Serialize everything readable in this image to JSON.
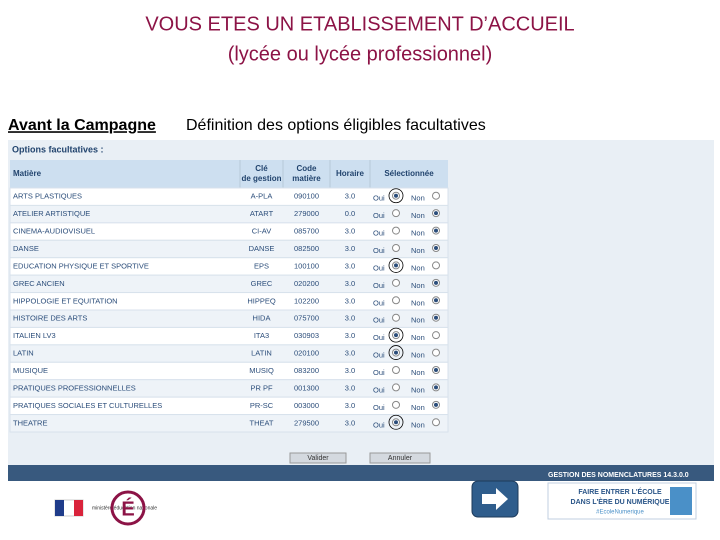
{
  "header": {
    "title": "VOUS ETES UN ETABLISSEMENT D’ACCUEIL",
    "subtitle": "(lycée ou lycée professionnel)"
  },
  "section": {
    "label": "Avant la Campagne",
    "description": "Définition des options éligibles facultatives"
  },
  "table": {
    "caption": "Options facultatives :",
    "columns": [
      "Matière",
      "Clé de gestion",
      "Code matière",
      "Horaire",
      "Sélectionnée"
    ],
    "choices": [
      "Oui",
      "Non"
    ],
    "rows": [
      {
        "matiere": "ARTS PLASTIQUES",
        "cle": "A-PLA",
        "code": "090100",
        "horaire": "3.0",
        "selection": "Oui"
      },
      {
        "matiere": "ATELIER ARTISTIQUE",
        "cle": "ATART",
        "code": "279000",
        "horaire": "0.0",
        "selection": "Non"
      },
      {
        "matiere": "CINEMA-AUDIOVISUEL",
        "cle": "CI-AV",
        "code": "085700",
        "horaire": "3.0",
        "selection": "Non"
      },
      {
        "matiere": "DANSE",
        "cle": "DANSE",
        "code": "082500",
        "horaire": "3.0",
        "selection": "Non"
      },
      {
        "matiere": "EDUCATION PHYSIQUE ET SPORTIVE",
        "cle": "EPS",
        "code": "100100",
        "horaire": "3.0",
        "selection": "Oui"
      },
      {
        "matiere": "GREC ANCIEN",
        "cle": "GREC",
        "code": "020200",
        "horaire": "3.0",
        "selection": "Non"
      },
      {
        "matiere": "HIPPOLOGIE ET EQUITATION",
        "cle": "HIPPEQ",
        "code": "102200",
        "horaire": "3.0",
        "selection": "Non"
      },
      {
        "matiere": "HISTOIRE DES ARTS",
        "cle": "HIDA",
        "code": "075700",
        "horaire": "3.0",
        "selection": "Non"
      },
      {
        "matiere": "ITALIEN LV3",
        "cle": "ITA3",
        "code": "030903",
        "horaire": "3.0",
        "selection": "Oui"
      },
      {
        "matiere": "LATIN",
        "cle": "LATIN",
        "code": "020100",
        "horaire": "3.0",
        "selection": "Oui"
      },
      {
        "matiere": "MUSIQUE",
        "cle": "MUSIQ",
        "code": "083200",
        "horaire": "3.0",
        "selection": "Non"
      },
      {
        "matiere": "PRATIQUES PROFESSIONNELLES",
        "cle": "PR PF",
        "code": "001300",
        "horaire": "3.0",
        "selection": "Non"
      },
      {
        "matiere": "PRATIQUES SOCIALES ET CULTURELLES",
        "cle": "PR-SC",
        "code": "003000",
        "horaire": "3.0",
        "selection": "Non"
      },
      {
        "matiere": "THEATRE",
        "cle": "THEAT",
        "code": "279500",
        "horaire": "3.0",
        "selection": "Oui"
      }
    ]
  },
  "buttons": [
    "Valider",
    "Annuler"
  ],
  "footer": {
    "app": "GESTION DES NOMENCLATURES 14.3.0.0",
    "ministry": "ministère éducation nationale",
    "slogan": [
      "FAIRE ENTRER L'ÉCOLE",
      "DANS L'ÈRE DU NUMÉRIQUE",
      "#EcoleNumerique"
    ]
  }
}
